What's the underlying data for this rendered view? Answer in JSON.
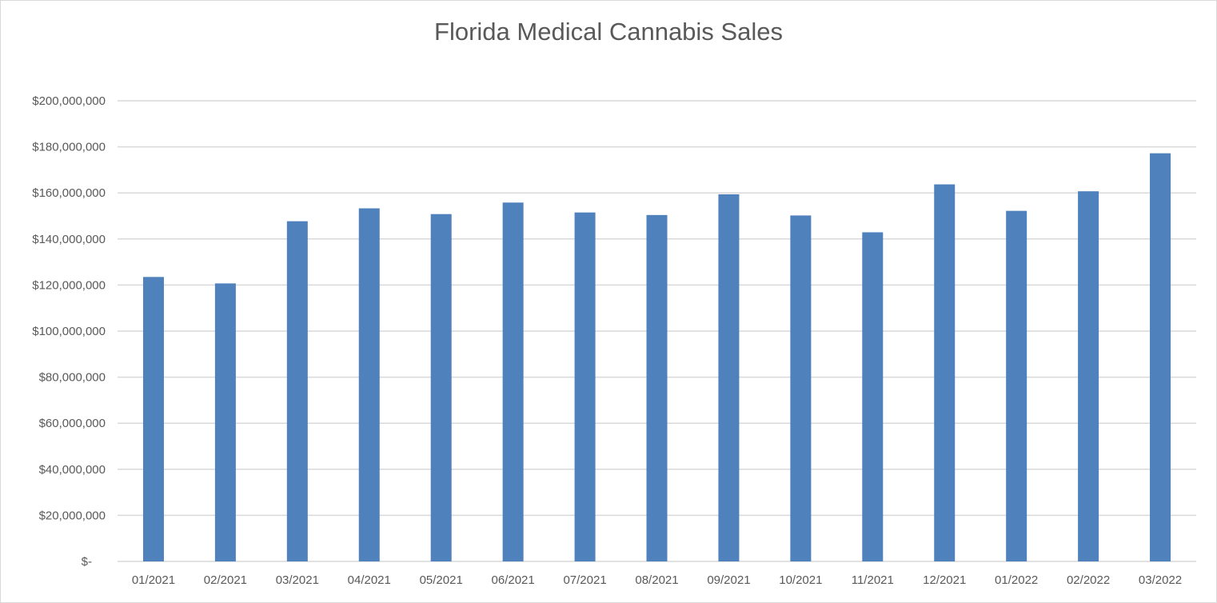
{
  "chart_data": {
    "type": "bar",
    "title": "Florida Medical Cannabis Sales",
    "xlabel": "",
    "ylabel": "",
    "ylim": [
      0,
      200000000
    ],
    "grid": true,
    "legend": "none",
    "bar_color": "#4f81bd",
    "y_ticks": [
      {
        "value": 0,
        "label": "$-"
      },
      {
        "value": 20000000,
        "label": "$20,000,000"
      },
      {
        "value": 40000000,
        "label": "$40,000,000"
      },
      {
        "value": 60000000,
        "label": "$60,000,000"
      },
      {
        "value": 80000000,
        "label": "$80,000,000"
      },
      {
        "value": 100000000,
        "label": "$100,000,000"
      },
      {
        "value": 120000000,
        "label": "$120,000,000"
      },
      {
        "value": 140000000,
        "label": "$140,000,000"
      },
      {
        "value": 160000000,
        "label": "$160,000,000"
      },
      {
        "value": 180000000,
        "label": "$180,000,000"
      },
      {
        "value": 200000000,
        "label": "$200,000,000"
      }
    ],
    "categories": [
      "01/2021",
      "02/2021",
      "03/2021",
      "04/2021",
      "05/2021",
      "06/2021",
      "07/2021",
      "08/2021",
      "09/2021",
      "10/2021",
      "11/2021",
      "12/2021",
      "01/2022",
      "02/2022",
      "03/2022"
    ],
    "values": [
      123500000,
      120700000,
      147700000,
      153300000,
      150800000,
      155800000,
      151500000,
      150400000,
      159400000,
      150200000,
      142900000,
      163700000,
      152200000,
      160700000,
      177200000
    ]
  }
}
